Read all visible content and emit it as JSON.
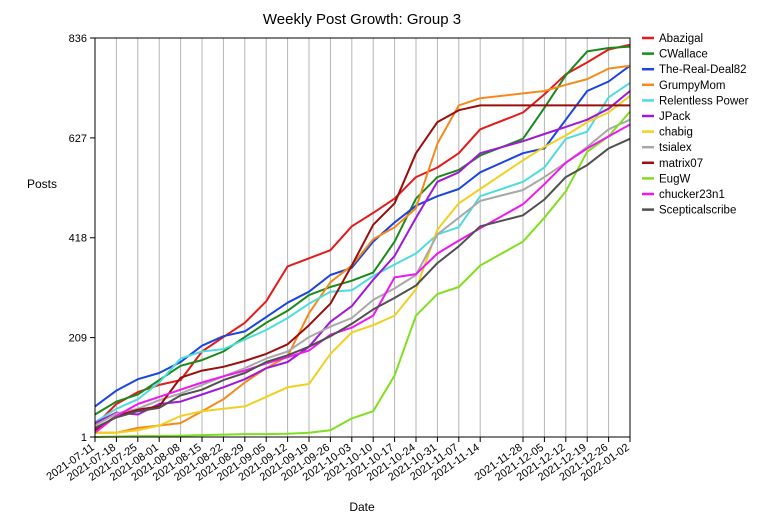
{
  "chart_data": {
    "type": "line",
    "title": "Weekly Post Growth: Group 3",
    "xlabel": "Date",
    "ylabel": "Posts",
    "yticks": [
      1,
      209,
      418,
      627,
      836
    ],
    "ylim": [
      1,
      836
    ],
    "grid": "vertical",
    "legend_position": "right",
    "x": [
      "2021-07-11",
      "2021-07-18",
      "2021-07-25",
      "2021-08-01",
      "2021-08-08",
      "2021-08-15",
      "2021-08-22",
      "2021-08-29",
      "2021-09-05",
      "2021-09-12",
      "2021-09-19",
      "2021-09-26",
      "2021-10-03",
      "2021-10-10",
      "2021-10-17",
      "2021-10-24",
      "2021-10-31",
      "2021-11-07",
      "2021-11-14",
      "2021-11-28",
      "2021-12-05",
      "2021-12-12",
      "2021-12-19",
      "2021-12-26",
      "2022-01-02"
    ],
    "series": [
      {
        "name": "Abazigal",
        "color": "#e41a1c",
        "values": [
          25,
          70,
          95,
          110,
          120,
          180,
          210,
          240,
          285,
          358,
          375,
          392,
          442,
          470,
          500,
          545,
          565,
          595,
          645,
          680,
          718,
          760,
          785,
          812,
          822
        ]
      },
      {
        "name": "CWallace",
        "color": "#1a8a1a",
        "values": [
          48,
          75,
          90,
          120,
          150,
          162,
          180,
          210,
          240,
          265,
          298,
          315,
          328,
          345,
          410,
          500,
          545,
          560,
          590,
          625,
          690,
          758,
          808,
          815,
          818
        ]
      },
      {
        "name": "The-Real-Deal82",
        "color": "#1a45e0",
        "values": [
          65,
          98,
          122,
          135,
          158,
          192,
          212,
          222,
          252,
          282,
          305,
          340,
          355,
          410,
          450,
          485,
          505,
          520,
          555,
          595,
          605,
          665,
          725,
          745,
          778
        ]
      },
      {
        "name": "GrumpyMom",
        "color": "#f58a1a",
        "values": [
          10,
          10,
          20,
          25,
          30,
          55,
          80,
          115,
          145,
          170,
          260,
          325,
          360,
          415,
          440,
          480,
          615,
          695,
          710,
          720,
          725,
          738,
          750,
          772,
          778
        ]
      },
      {
        "name": "Relentless Power",
        "color": "#4fdcdc",
        "values": [
          32,
          60,
          80,
          115,
          165,
          180,
          185,
          205,
          225,
          250,
          280,
          305,
          308,
          338,
          362,
          385,
          425,
          440,
          505,
          535,
          565,
          625,
          640,
          712,
          742
        ]
      },
      {
        "name": "JPack",
        "color": "#a018d8",
        "values": [
          30,
          52,
          48,
          70,
          75,
          90,
          105,
          122,
          145,
          158,
          190,
          242,
          275,
          330,
          380,
          460,
          535,
          555,
          595,
          620,
          635,
          650,
          665,
          688,
          725
        ]
      },
      {
        "name": "chabig",
        "color": "#f0d020",
        "values": [
          10,
          10,
          15,
          25,
          45,
          55,
          60,
          65,
          85,
          105,
          112,
          175,
          220,
          235,
          255,
          310,
          435,
          490,
          520,
          580,
          608,
          632,
          660,
          680,
          715
        ]
      },
      {
        "name": "tsialex",
        "color": "#a8a8a8",
        "values": [
          25,
          50,
          60,
          78,
          92,
          110,
          128,
          145,
          165,
          180,
          210,
          232,
          250,
          288,
          312,
          340,
          425,
          460,
          495,
          518,
          545,
          575,
          608,
          645,
          665
        ]
      },
      {
        "name": "matrix07",
        "color": "#9a0e0e",
        "values": [
          15,
          45,
          58,
          65,
          125,
          140,
          148,
          160,
          175,
          195,
          235,
          280,
          360,
          445,
          490,
          595,
          660,
          685,
          695,
          695,
          695,
          695,
          695,
          695,
          695
        ]
      },
      {
        "name": "EugW",
        "color": "#80e020",
        "values": [
          1,
          2,
          3,
          3,
          4,
          5,
          6,
          7,
          7,
          8,
          10,
          15,
          40,
          55,
          130,
          255,
          300,
          315,
          360,
          410,
          460,
          515,
          598,
          630,
          682
        ]
      },
      {
        "name": "chucker23n1",
        "color": "#f018f0",
        "values": [
          10,
          45,
          70,
          85,
          100,
          115,
          128,
          140,
          155,
          168,
          182,
          215,
          230,
          255,
          335,
          342,
          385,
          412,
          438,
          488,
          530,
          575,
          605,
          630,
          655
        ]
      },
      {
        "name": "Scepticalscribe",
        "color": "#505050",
        "values": [
          20,
          42,
          55,
          62,
          88,
          100,
          120,
          135,
          158,
          172,
          190,
          212,
          238,
          268,
          292,
          318,
          365,
          400,
          442,
          465,
          498,
          545,
          570,
          605,
          625
        ]
      }
    ]
  }
}
